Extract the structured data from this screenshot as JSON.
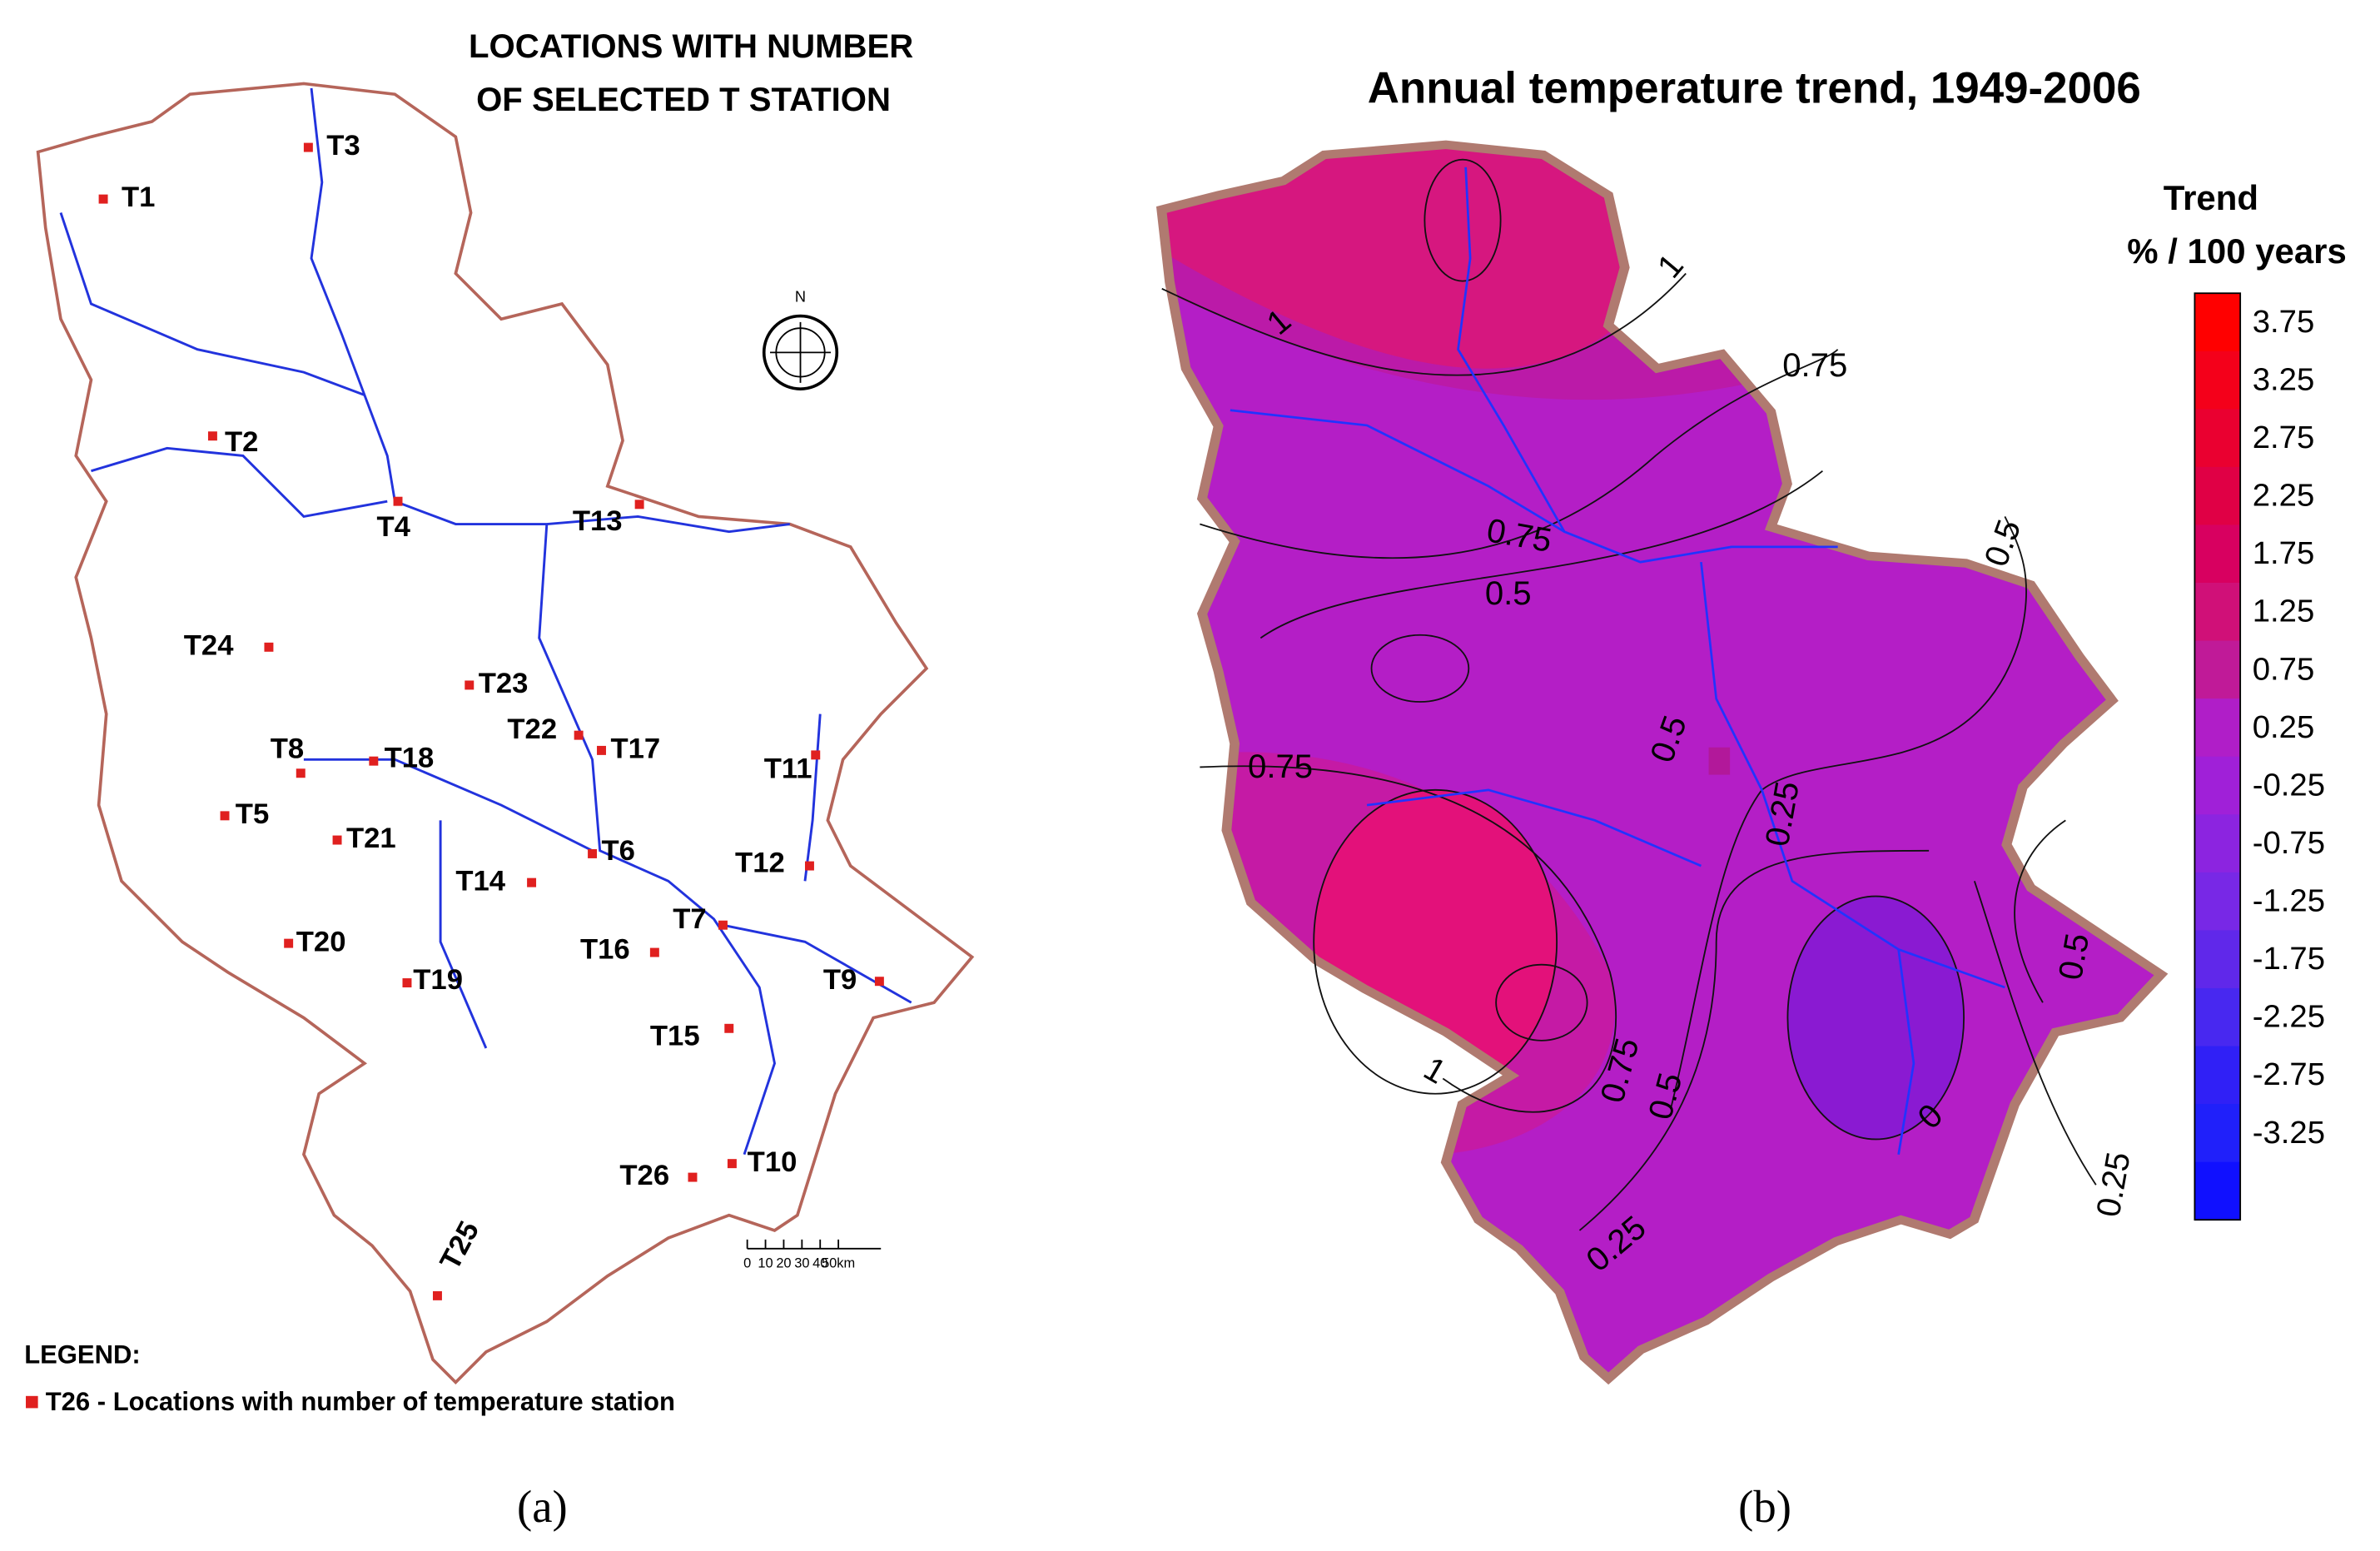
{
  "panel_a": {
    "title": [
      "LOCATIONS WITH NUMBER",
      "OF SELECTED T STATION"
    ],
    "stations": [
      "T1",
      "T2",
      "T3",
      "T4",
      "T5",
      "T6",
      "T7",
      "T8",
      "T9",
      "T10",
      "T11",
      "T12",
      "T13",
      "T14",
      "T15",
      "T16",
      "T17",
      "T18",
      "T19",
      "T20",
      "T21",
      "T22",
      "T23",
      "T24",
      "T25",
      "T26"
    ],
    "north": "N",
    "scale_labels": [
      "0",
      "10",
      "20",
      "30",
      "40",
      "50km"
    ],
    "legend_title": "LEGEND:",
    "legend_item": "T26 - Locations with number of temperature station",
    "caption": "(a)"
  },
  "panel_b": {
    "title": "Annual temperature trend, 1949-2006",
    "legend_title": [
      "Trend",
      "% / 100 years"
    ],
    "legend_labels": [
      "3.75",
      "3.25",
      "2.75",
      "2.25",
      "1.75",
      "1.25",
      "0.75",
      "0.25",
      "-0.25",
      "-0.75",
      "-1.25",
      "-1.75",
      "-2.25",
      "-2.75",
      "-3.25"
    ],
    "contour_labels": [
      "1",
      "1",
      "0.75",
      "0.75",
      "0.5",
      "0.5",
      "0.75",
      "0.5",
      "0.25",
      "0.5",
      "1",
      "0.75",
      "0.5",
      "0",
      "0.25",
      "0.25"
    ],
    "caption": "(b)"
  }
}
